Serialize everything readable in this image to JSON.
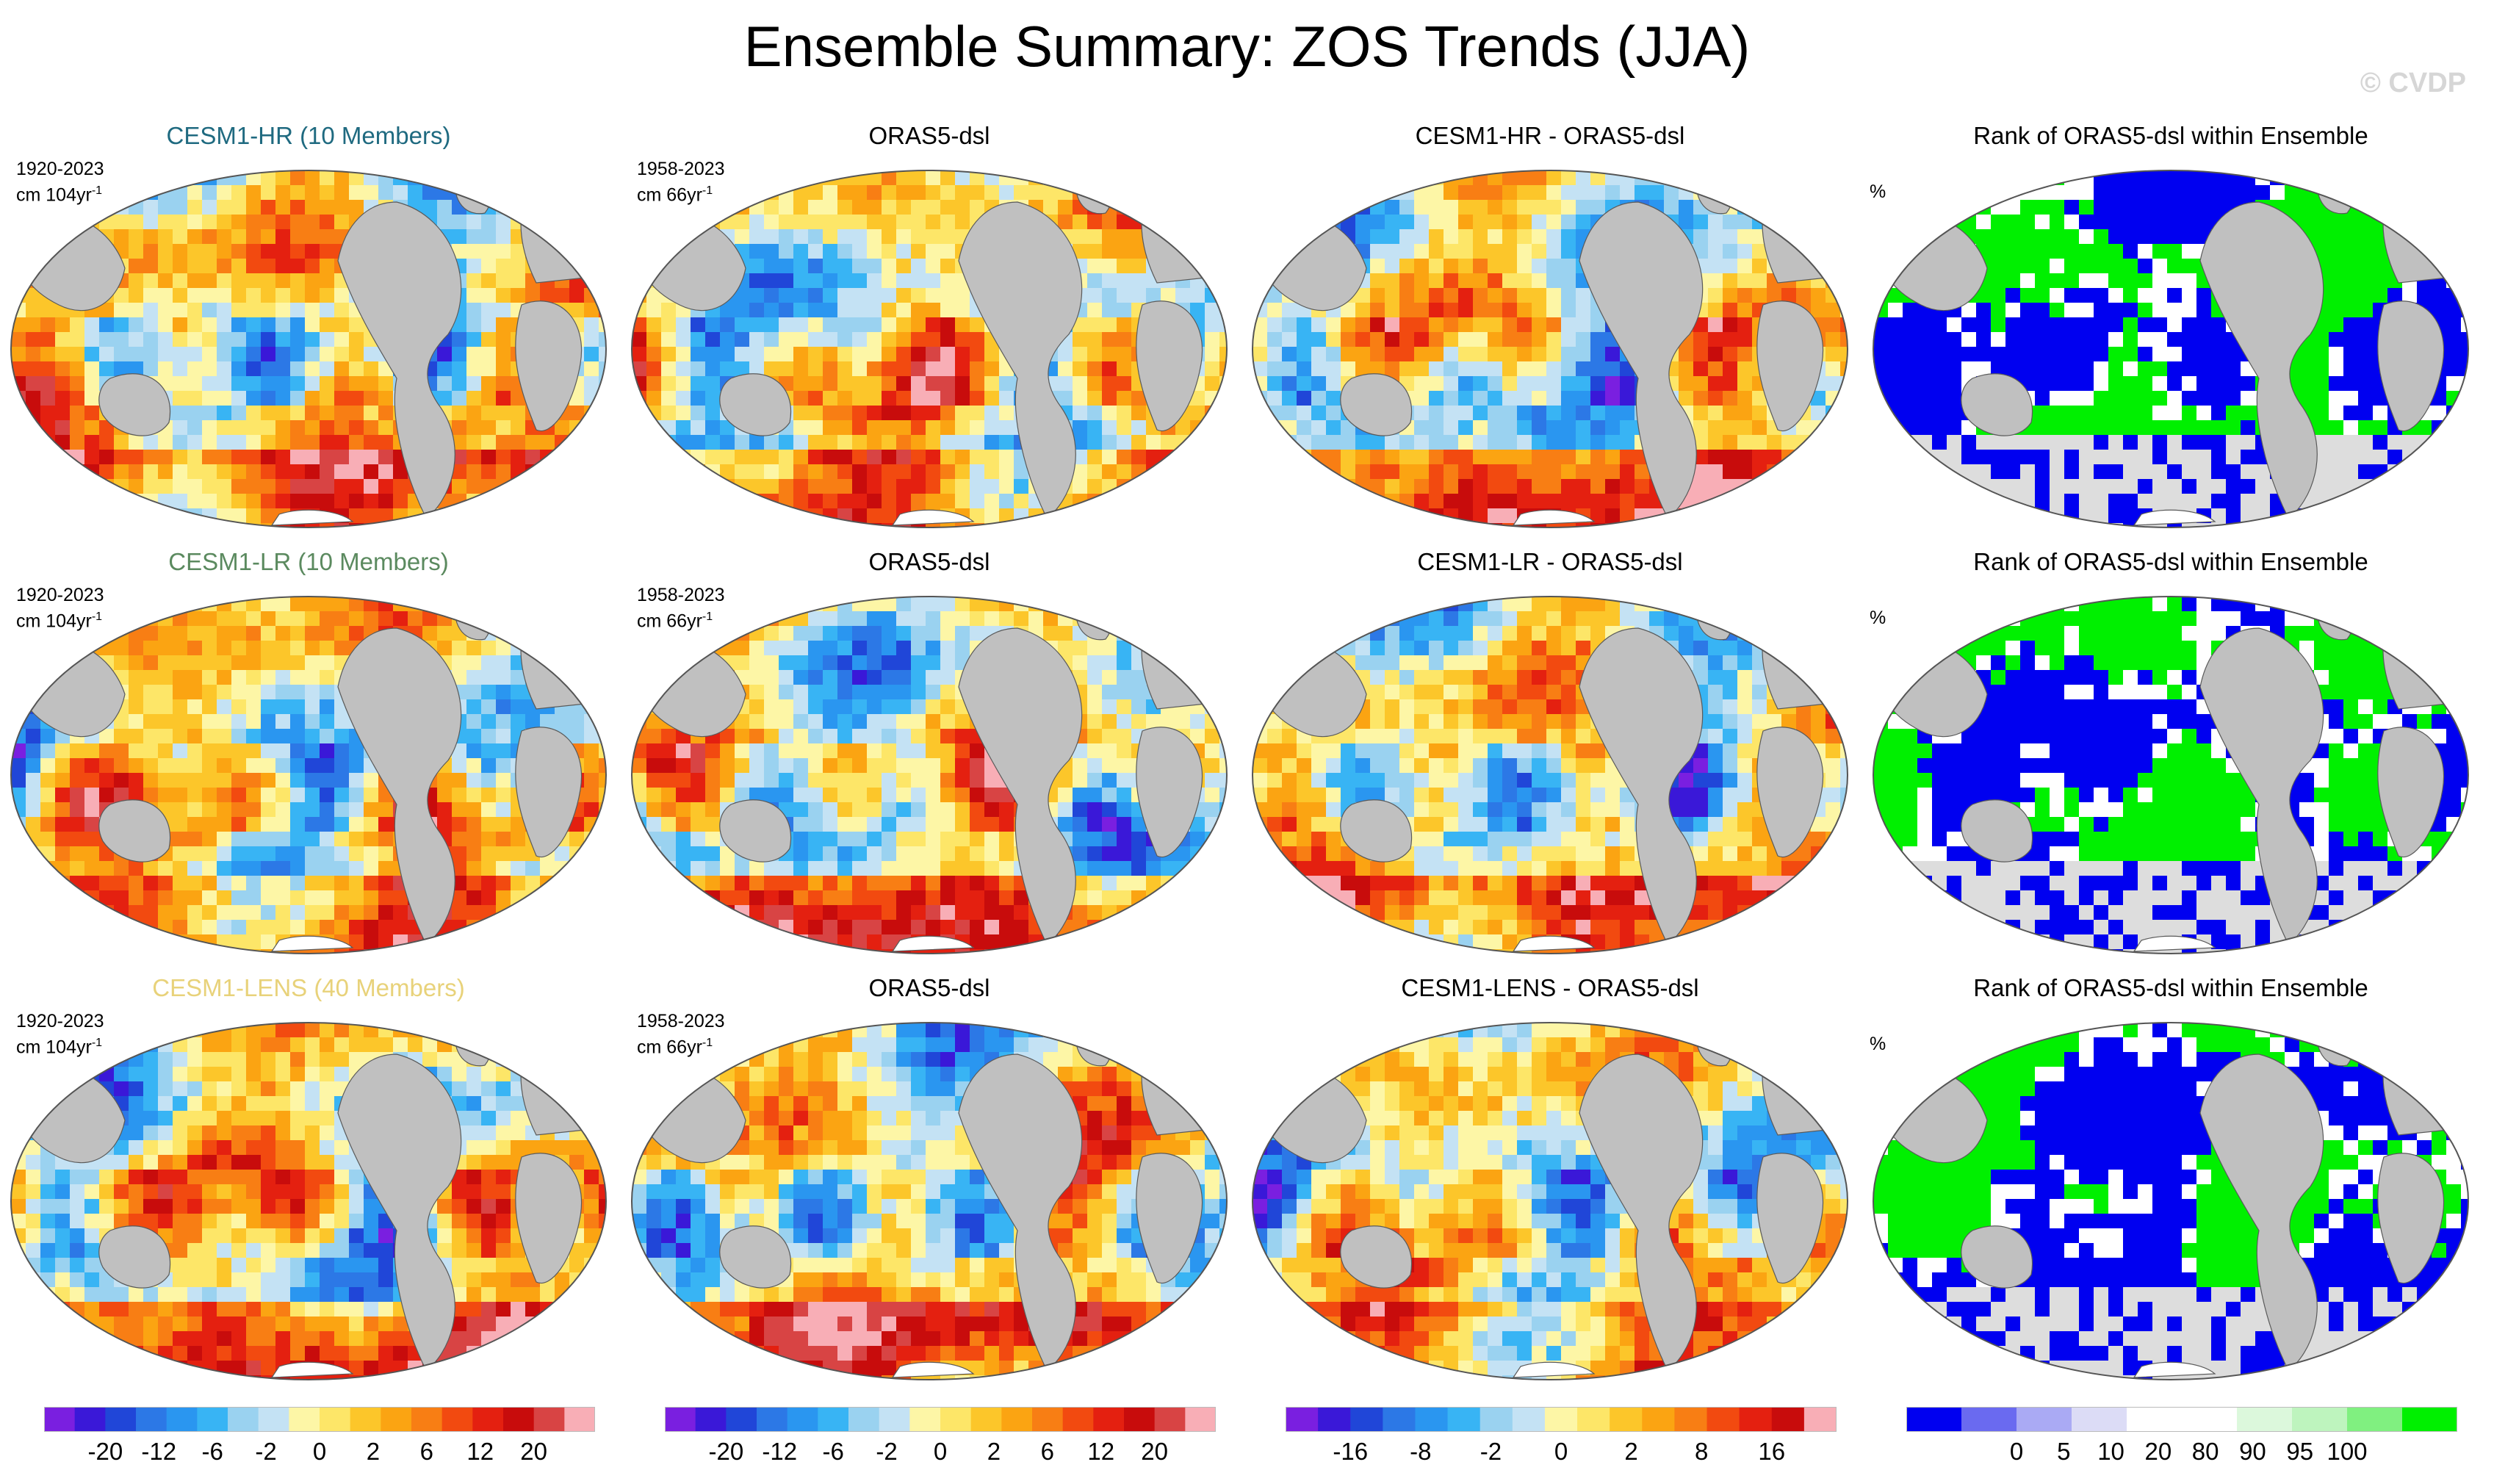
{
  "title": "Ensemble Summary: ZOS Trends (JJA)",
  "watermark": "© CVDP",
  "colors": {
    "trend_scale": [
      "#7a1fe0",
      "#3a18d8",
      "#2046d8",
      "#2c78e6",
      "#2a96f0",
      "#38b4f4",
      "#9ad2f0",
      "#c4e2f4",
      "#fdf6a6",
      "#fde668",
      "#fcc62a",
      "#fba412",
      "#f87e14",
      "#f24a10",
      "#e42010",
      "#c80c0c",
      "#d84444",
      "#f8aeb6"
    ],
    "diff_scale": [
      "#7a1fe0",
      "#3a18d8",
      "#2046d8",
      "#2c78e6",
      "#2a96f0",
      "#38b4f4",
      "#9ad2f0",
      "#c4e2f4",
      "#fdf6a6",
      "#fde668",
      "#fcc62a",
      "#fba412",
      "#f87e14",
      "#f24a10",
      "#e42010",
      "#c80c0c",
      "#f8aeb6"
    ],
    "rank_scale": [
      "#0000f0",
      "#6a6af0",
      "#aaaaf4",
      "#dcdcf6",
      "#ffffff",
      "#ffffff",
      "#dcf8dc",
      "#bef4be",
      "#80f080",
      "#00f000"
    ],
    "land": "#c0c0c0",
    "ocean_missing": "#dddddd"
  },
  "rows": [
    {
      "model_title": "CESM1-HR (10 Members)",
      "model_title_color": "#1f6a80",
      "model_period": "1920-2023",
      "model_units": "cm 104yr",
      "obs_title": "ORAS5-dsl",
      "obs_period": "1958-2023",
      "obs_units": "cm 66yr",
      "diff_title": "CESM1-HR - ORAS5-dsl",
      "rank_title": "Rank of ORAS5-dsl within Ensemble",
      "rank_units": "%"
    },
    {
      "model_title": "CESM1-LR (10 Members)",
      "model_title_color": "#5b8a5f",
      "model_period": "1920-2023",
      "model_units": "cm 104yr",
      "obs_title": "ORAS5-dsl",
      "obs_period": "1958-2023",
      "obs_units": "cm 66yr",
      "diff_title": "CESM1-LR - ORAS5-dsl",
      "rank_title": "Rank of ORAS5-dsl within Ensemble",
      "rank_units": "%"
    },
    {
      "model_title": "CESM1-LENS (40 Members)",
      "model_title_color": "#e8d27a",
      "model_period": "1920-2023",
      "model_units": "cm 104yr",
      "obs_title": "ORAS5-dsl",
      "obs_period": "1958-2023",
      "obs_units": "cm 66yr",
      "diff_title": "CESM1-LENS - ORAS5-dsl",
      "rank_title": "Rank of ORAS5-dsl within Ensemble",
      "rank_units": "%"
    }
  ],
  "units_exponent": "-1",
  "chart_data": {
    "type": "heatmap",
    "projection": "Robinson global maps",
    "variable": "ZOS linear trend, JJA season",
    "colorbars": [
      {
        "name": "model/obs trend",
        "units": "cm per period",
        "tick_labels": [
          "-20",
          "-12",
          "-6",
          "-2",
          "0",
          "2",
          "6",
          "12",
          "20"
        ]
      },
      {
        "name": "model/obs trend",
        "units": "cm per period",
        "tick_labels": [
          "-20",
          "-12",
          "-6",
          "-2",
          "0",
          "2",
          "6",
          "12",
          "20"
        ]
      },
      {
        "name": "difference",
        "units": "cm",
        "tick_labels": [
          "-16",
          "-8",
          "-2",
          "0",
          "2",
          "8",
          "16"
        ]
      },
      {
        "name": "rank",
        "units": "%",
        "tick_labels": [
          "0",
          "5",
          "10",
          "20",
          "80",
          "90",
          "95",
          "100"
        ]
      }
    ]
  }
}
